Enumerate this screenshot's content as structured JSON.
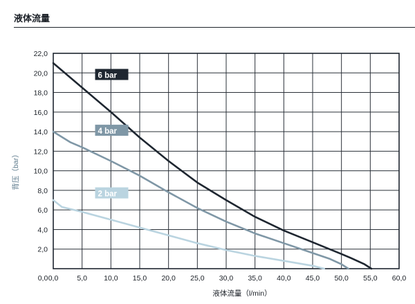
{
  "header": {
    "title": "液体流量"
  },
  "chart_data": {
    "type": "line",
    "title": "",
    "xlabel": "液体流量（l/min）",
    "ylabel": "背压（bar）",
    "xlim": [
      0,
      60
    ],
    "ylim": [
      0,
      22
    ],
    "x_ticks": [
      "0,0",
      "5,0",
      "10,0",
      "15,0",
      "20,0",
      "25,0",
      "30,0",
      "35,0",
      "40,0",
      "45,0",
      "50,0",
      "55,0",
      "60,0"
    ],
    "y_ticks": [
      "2,0",
      "4,0",
      "6,0",
      "8,0",
      "10,0",
      "12,0",
      "14,0",
      "16,0",
      "18,0",
      "20,0",
      "22,0"
    ],
    "grid": true,
    "series": [
      {
        "name": "6 bar",
        "color": "#1e2630",
        "x": [
          0,
          5,
          10,
          15,
          20,
          25,
          30,
          35,
          40,
          45,
          50,
          52,
          54,
          55.2
        ],
        "y": [
          21.0,
          18.5,
          16.0,
          13.4,
          11.0,
          8.8,
          7.0,
          5.3,
          3.9,
          2.7,
          1.5,
          1.0,
          0.45,
          0.0
        ]
      },
      {
        "name": "4 bar",
        "color": "#7f97a6",
        "x": [
          0,
          3,
          5,
          10,
          15,
          20,
          25,
          30,
          35,
          40,
          45,
          48,
          50,
          51.2
        ],
        "y": [
          14.0,
          12.9,
          12.4,
          11.0,
          9.5,
          7.8,
          6.2,
          4.8,
          3.6,
          2.6,
          1.6,
          1.0,
          0.45,
          0.0
        ]
      },
      {
        "name": "2 bar",
        "color": "#bad4e0",
        "x": [
          0,
          1.5,
          5,
          10,
          15,
          20,
          25,
          30,
          35,
          40,
          45,
          47
        ],
        "y": [
          7.0,
          6.3,
          5.8,
          5.0,
          4.2,
          3.4,
          2.6,
          1.9,
          1.3,
          0.8,
          0.3,
          0.0
        ]
      }
    ]
  }
}
